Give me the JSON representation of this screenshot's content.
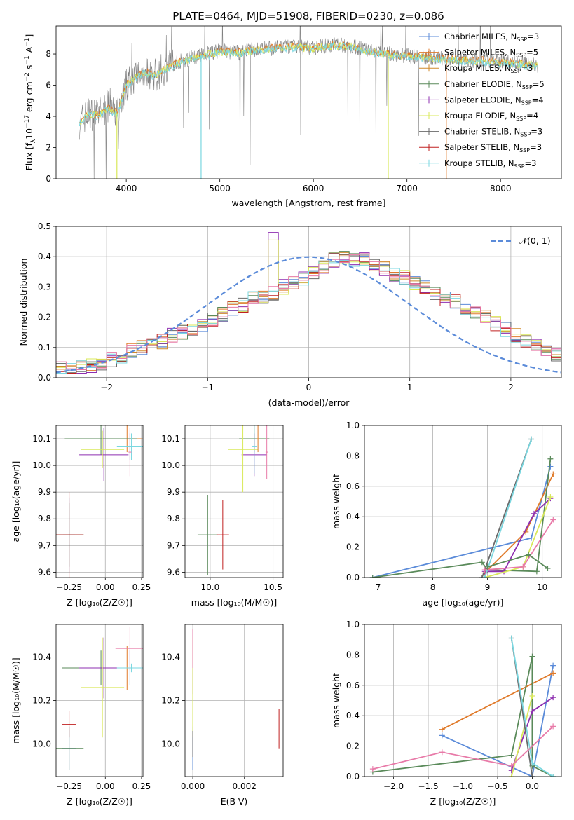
{
  "title": "PLATE=0464, MJD=51908, FIBERID=0230, z=0.086",
  "colors": {
    "chabrier_miles": "#5b8bd9",
    "salpeter_miles": "#e07a2a",
    "kroupa_miles": "#d08a2a",
    "chabrier_elodie": "#5a8a5a",
    "salpeter_elodie": "#8e2fb0",
    "kroupa_elodie": "#d9e85a",
    "chabrier_stelib": "#6a6a6a",
    "salpeter_stelib": "#c02020",
    "kroupa_stelib": "#7ad7e0",
    "pink": "#e87aa8",
    "normal_curve": "#5b8bd9",
    "data_flux": "#808080"
  },
  "chart_data": [
    {
      "type": "line",
      "panel": "spectrum",
      "xlabel": "wavelength [Angstrom, rest frame]",
      "ylabel_main": "Flux [f",
      "ylabel_sub1": "λ",
      "ylabel_mid": "10",
      "ylabel_sup1": "−17",
      "ylabel_tail": " erg cm",
      "ylabel_sup2": "−2",
      "ylabel_tail2": " s",
      "ylabel_sup3": "−1",
      "ylabel_tail3": " A",
      "ylabel_sup4": "−1",
      "ylabel_end": "]",
      "xlim": [
        3250,
        8650
      ],
      "ylim": [
        0,
        9.8
      ],
      "xticks": [
        "4000",
        "5000",
        "6000",
        "7000",
        "8000"
      ],
      "yticks": [
        "0",
        "2",
        "4",
        "6",
        "8"
      ],
      "legend": [
        {
          "pre": "Chabrier MILES, N",
          "sub": "SSP",
          "post": "=3"
        },
        {
          "pre": "Salpeter MILES, N",
          "sub": "SSP",
          "post": "=5"
        },
        {
          "pre": "Kroupa MILES, N",
          "sub": "SSP",
          "post": "=3"
        },
        {
          "pre": "Chabrier ELODIE, N",
          "sub": "SSP",
          "post": "=5"
        },
        {
          "pre": "Salpeter ELODIE, N",
          "sub": "SSP",
          "post": "=4"
        },
        {
          "pre": "Kroupa ELODIE, N",
          "sub": "SSP",
          "post": "=4"
        },
        {
          "pre": "Chabrier STELIB, N",
          "sub": "SSP",
          "post": "=3"
        },
        {
          "pre": "Salpeter STELIB, N",
          "sub": "SSP",
          "post": "=3"
        },
        {
          "pre": "Kroupa STELIB, N",
          "sub": "SSP",
          "post": "=3"
        }
      ],
      "continuum": [
        [
          3500,
          3.6
        ],
        [
          3600,
          4.2
        ],
        [
          3700,
          4.1
        ],
        [
          3800,
          4.6
        ],
        [
          3900,
          4.2
        ],
        [
          4000,
          6.0
        ],
        [
          4100,
          6.6
        ],
        [
          4200,
          6.9
        ],
        [
          4300,
          6.6
        ],
        [
          4400,
          7.0
        ],
        [
          4600,
          7.6
        ],
        [
          4800,
          7.9
        ],
        [
          5000,
          8.2
        ],
        [
          5200,
          8.1
        ],
        [
          5400,
          8.3
        ],
        [
          5600,
          8.4
        ],
        [
          5800,
          8.5
        ],
        [
          6000,
          8.4
        ],
        [
          6200,
          8.6
        ],
        [
          6400,
          8.5
        ],
        [
          6600,
          8.2
        ],
        [
          6800,
          8.0
        ],
        [
          7000,
          7.9
        ],
        [
          7200,
          7.8
        ],
        [
          7400,
          7.7
        ],
        [
          7600,
          7.6
        ],
        [
          7800,
          7.6
        ],
        [
          8000,
          7.5
        ],
        [
          8200,
          7.4
        ],
        [
          8400,
          7.3
        ]
      ]
    },
    {
      "type": "bar",
      "panel": "residual-histogram",
      "xlabel": "(data-model)/error",
      "ylabel": "Normed distribution",
      "xlim": [
        -2.5,
        2.5
      ],
      "ylim": [
        0,
        0.5
      ],
      "xticks": [
        "−2",
        "−1",
        "0",
        "1",
        "2"
      ],
      "yticks": [
        "0.0",
        "0.1",
        "0.2",
        "0.3",
        "0.4",
        "0.5"
      ],
      "legend": "𝒩(0, 1)",
      "bin_width": 0.1,
      "bins_start": -2.5,
      "reference_values": [
        0.03,
        0.03,
        0.04,
        0.04,
        0.05,
        0.06,
        0.07,
        0.09,
        0.1,
        0.11,
        0.12,
        0.14,
        0.15,
        0.16,
        0.17,
        0.19,
        0.21,
        0.23,
        0.24,
        0.26,
        0.27,
        0.28,
        0.3,
        0.31,
        0.33,
        0.35,
        0.37,
        0.39,
        0.4,
        0.39,
        0.39,
        0.37,
        0.36,
        0.34,
        0.33,
        0.31,
        0.3,
        0.28,
        0.26,
        0.25,
        0.23,
        0.21,
        0.2,
        0.18,
        0.16,
        0.14,
        0.12,
        0.11,
        0.09,
        0.08,
        0.07,
        0.06,
        0.05,
        0.04,
        0.04,
        0.03
      ]
    },
    {
      "type": "scatter",
      "panel": "age-vs-Z",
      "xlabel": "Z [log₁₀(Z/Z☉)]",
      "ylabel": "age  [log₁₀(age/yr)]",
      "xlim": [
        -0.34,
        0.26
      ],
      "ylim": [
        9.58,
        10.15
      ],
      "xticks": [
        "−0.25",
        "0.00",
        "0.25"
      ],
      "yticks": [
        "9.6",
        "9.7",
        "9.8",
        "9.9",
        "10.0",
        "10.1"
      ],
      "points": [
        {
          "x": -0.25,
          "y": 9.74,
          "xe": 0.04,
          "ye": 0.14,
          "c": "chabrier_miles"
        },
        {
          "x": 0.17,
          "y": 10.07,
          "xe": 0.08,
          "ye": 0.05,
          "c": "chabrier_miles"
        },
        {
          "x": 0.15,
          "y": 10.1,
          "xe": 0.1,
          "ye": 0.05,
          "c": "salpeter_miles"
        },
        {
          "x": -0.25,
          "y": 9.74,
          "xe": 0.1,
          "ye": 0.12,
          "c": "chabrier_elodie"
        },
        {
          "x": -0.03,
          "y": 10.1,
          "xe": 0.25,
          "ye": 0.06,
          "c": "chabrier_elodie"
        },
        {
          "x": -0.01,
          "y": 10.04,
          "xe": 0.17,
          "ye": 0.1,
          "c": "salpeter_elodie"
        },
        {
          "x": -0.02,
          "y": 10.06,
          "xe": 0.15,
          "ye": 0.07,
          "c": "kroupa_elodie"
        },
        {
          "x": -0.25,
          "y": 9.74,
          "xe": 0.1,
          "ye": 0.16,
          "c": "salpeter_stelib"
        },
        {
          "x": 0.18,
          "y": 10.07,
          "xe": 0.1,
          "ye": 0.05,
          "c": "kroupa_stelib"
        },
        {
          "x": 0.17,
          "y": 10.05,
          "xe": 0.01,
          "ye": 0.09,
          "c": "pink"
        }
      ]
    },
    {
      "type": "scatter",
      "panel": "age-vs-mass",
      "xlabel": "mass [log₁₀(M/M☉)]",
      "ylabel": "",
      "xlim": [
        9.8,
        10.58
      ],
      "ylim": [
        9.58,
        10.15
      ],
      "xticks": [
        "10.0",
        "10.5"
      ],
      "yticks": [
        "9.6",
        "9.7",
        "9.8",
        "9.9",
        "10.0",
        "10.1"
      ],
      "points": [
        {
          "x": 9.98,
          "y": 9.74,
          "xe": 0.08,
          "ye": 0.15,
          "c": "chabrier_elodie"
        },
        {
          "x": 10.35,
          "y": 10.1,
          "xe": 0.12,
          "ye": 0.05,
          "c": "chabrier_elodie"
        },
        {
          "x": 10.35,
          "y": 10.04,
          "xe": 0.1,
          "ye": 0.08,
          "c": "salpeter_elodie"
        },
        {
          "x": 10.26,
          "y": 10.06,
          "xe": 0.12,
          "ye": 0.16,
          "c": "kroupa_elodie"
        },
        {
          "x": 10.1,
          "y": 9.74,
          "xe": 0.05,
          "ye": 0.13,
          "c": "salpeter_stelib"
        },
        {
          "x": 10.35,
          "y": 10.07,
          "xe": 0.02,
          "ye": 0.1,
          "c": "kroupa_stelib"
        },
        {
          "x": 10.45,
          "y": 10.05,
          "xe": 0.01,
          "ye": 0.1,
          "c": "pink"
        },
        {
          "x": 10.38,
          "y": 10.1,
          "xe": 0.01,
          "ye": 0.05,
          "c": "salpeter_miles"
        }
      ]
    },
    {
      "type": "line",
      "panel": "mass-weight-vs-age",
      "xlabel": "age  [log₁₀(age/yr)]",
      "ylabel": "mass weight",
      "xlim": [
        6.75,
        10.35
      ],
      "ylim": [
        0,
        1.0
      ],
      "xticks": [
        "7",
        "8",
        "9",
        "10"
      ],
      "yticks": [
        "0.0",
        "0.2",
        "0.4",
        "0.6",
        "0.8",
        "1.0"
      ],
      "series": [
        {
          "c": "chabrier_miles",
          "pts": [
            [
              6.9,
              0.0
            ],
            [
              9.8,
              0.26
            ],
            [
              10.15,
              0.73
            ]
          ]
        },
        {
          "c": "salpeter_miles",
          "pts": [
            [
              8.95,
              0.03
            ],
            [
              9.7,
              0.3
            ],
            [
              10.2,
              0.68
            ]
          ]
        },
        {
          "c": "chabrier_elodie",
          "pts": [
            [
              6.9,
              0.0
            ],
            [
              8.9,
              0.1
            ],
            [
              9.0,
              0.05
            ],
            [
              9.9,
              0.04
            ],
            [
              10.15,
              0.78
            ]
          ]
        },
        {
          "c": "salpeter_elodie",
          "pts": [
            [
              8.95,
              0.04
            ],
            [
              9.3,
              0.04
            ],
            [
              9.85,
              0.42
            ],
            [
              10.15,
              0.52
            ]
          ]
        },
        {
          "c": "kroupa_elodie",
          "pts": [
            [
              8.95,
              0.0
            ],
            [
              9.65,
              0.07
            ],
            [
              10.15,
              0.53
            ]
          ]
        },
        {
          "c": "chabrier_stelib",
          "pts": [
            [
              8.9,
              0.0
            ],
            [
              9.8,
              0.91
            ]
          ]
        },
        {
          "c": "kroupa_stelib",
          "pts": [
            [
              8.95,
              0.0
            ],
            [
              9.8,
              0.91
            ]
          ]
        },
        {
          "c": "pink",
          "pts": [
            [
              8.95,
              0.05
            ],
            [
              9.65,
              0.07
            ],
            [
              10.2,
              0.38
            ]
          ]
        },
        {
          "c": "chabrier_elodie",
          "pts": [
            [
              9.0,
              0.07
            ],
            [
              9.75,
              0.15
            ],
            [
              10.1,
              0.06
            ]
          ]
        }
      ]
    },
    {
      "type": "scatter",
      "panel": "mass-vs-Z",
      "xlabel": "Z [log₁₀(Z/Z☉)]",
      "ylabel": "mass [log₁₀(M/M☉)]",
      "xlim": [
        -0.34,
        0.26
      ],
      "ylim": [
        9.85,
        10.55
      ],
      "xticks": [
        "−0.25",
        "0.00",
        "0.25"
      ],
      "yticks": [
        "10.0",
        "10.2",
        "10.4"
      ],
      "points": [
        {
          "x": -0.25,
          "y": 9.98,
          "xe": 0.05,
          "ye": 0.1,
          "c": "chabrier_miles"
        },
        {
          "x": 0.17,
          "y": 10.35,
          "xe": 0.09,
          "ye": 0.08,
          "c": "chabrier_miles"
        },
        {
          "x": 0.15,
          "y": 10.35,
          "xe": 0.1,
          "ye": 0.1,
          "c": "salpeter_miles"
        },
        {
          "x": -0.25,
          "y": 9.98,
          "xe": 0.1,
          "ye": 0.1,
          "c": "chabrier_elodie"
        },
        {
          "x": -0.03,
          "y": 10.35,
          "xe": 0.27,
          "ye": 0.08,
          "c": "chabrier_elodie"
        },
        {
          "x": -0.01,
          "y": 10.35,
          "xe": 0.17,
          "ye": 0.14,
          "c": "salpeter_elodie"
        },
        {
          "x": -0.02,
          "y": 10.26,
          "xe": 0.15,
          "ye": 0.23,
          "c": "kroupa_elodie"
        },
        {
          "x": -0.25,
          "y": 10.09,
          "xe": 0.05,
          "ye": 0.06,
          "c": "salpeter_stelib"
        },
        {
          "x": 0.17,
          "y": 10.44,
          "xe": 0.1,
          "ye": 0.1,
          "c": "pink"
        },
        {
          "x": 0.18,
          "y": 10.35,
          "xe": 0.1,
          "ye": 0.02,
          "c": "kroupa_stelib"
        }
      ]
    },
    {
      "type": "scatter",
      "panel": "mass-vs-ebv",
      "xlabel": "E(B-V)",
      "ylabel": "",
      "xlim": [
        -0.0003,
        0.0035
      ],
      "ylim": [
        9.85,
        10.55
      ],
      "xticks": [
        "0.000",
        "0.002"
      ],
      "yticks": [
        "10.0",
        "10.2",
        "10.4"
      ],
      "points": [
        {
          "x": 0.0,
          "y": 9.98,
          "xe": 0.0,
          "ye": 0.1,
          "c": "chabrier_miles"
        },
        {
          "x": 0.0,
          "y": 10.35,
          "xe": 0.0,
          "ye": 0.08,
          "c": "chabrier_elodie"
        },
        {
          "x": 0.0,
          "y": 10.35,
          "xe": 0.0,
          "ye": 0.12,
          "c": "salpeter_elodie"
        },
        {
          "x": 0.0,
          "y": 10.26,
          "xe": 0.0,
          "ye": 0.23,
          "c": "kroupa_elodie"
        },
        {
          "x": 0.0,
          "y": 10.44,
          "xe": 0.0,
          "ye": 0.09,
          "c": "pink"
        },
        {
          "x": 0.0,
          "y": 10.0,
          "xe": 0.0,
          "ye": 0.06,
          "c": "chabrier_stelib"
        },
        {
          "x": 0.00334,
          "y": 10.07,
          "xe": 0.0,
          "ye": 0.09,
          "c": "salpeter_stelib"
        }
      ]
    },
    {
      "type": "line",
      "panel": "mass-weight-vs-Z",
      "xlabel": "Z [log₁₀(Z/Z☉)]",
      "ylabel": "mass weight",
      "xlim": [
        -2.42,
        0.42
      ],
      "ylim": [
        0,
        1.0
      ],
      "xticks": [
        "−2.0",
        "−1.5",
        "−1.0",
        "−0.5",
        "0.0"
      ],
      "yticks": [
        "0.0",
        "0.2",
        "0.4",
        "0.6",
        "0.8",
        "1.0"
      ],
      "series": [
        {
          "c": "chabrier_miles",
          "pts": [
            [
              -1.3,
              0.27
            ],
            [
              0.0,
              0.0
            ],
            [
              0.3,
              0.73
            ]
          ]
        },
        {
          "c": "salpeter_miles",
          "pts": [
            [
              -1.3,
              0.31
            ],
            [
              0.3,
              0.68
            ]
          ]
        },
        {
          "c": "chabrier_elodie",
          "pts": [
            [
              -2.3,
              0.03
            ],
            [
              -0.3,
              0.14
            ],
            [
              0.0,
              0.79
            ],
            [
              0.0,
              0.07
            ],
            [
              0.3,
              0.0
            ]
          ]
        },
        {
          "c": "salpeter_elodie",
          "pts": [
            [
              -0.3,
              0.04
            ],
            [
              0.0,
              0.43
            ],
            [
              0.3,
              0.52
            ]
          ]
        },
        {
          "c": "kroupa_elodie",
          "pts": [
            [
              -0.3,
              0.0
            ],
            [
              0.0,
              0.53
            ]
          ]
        },
        {
          "c": "chabrier_stelib",
          "pts": [
            [
              -0.3,
              0.91
            ],
            [
              0.0,
              0.0
            ]
          ]
        },
        {
          "c": "kroupa_stelib",
          "pts": [
            [
              -0.3,
              0.91
            ],
            [
              0.0,
              0.09
            ],
            [
              0.3,
              0.0
            ]
          ]
        },
        {
          "c": "pink",
          "pts": [
            [
              -2.3,
              0.05
            ],
            [
              -1.3,
              0.16
            ],
            [
              -0.3,
              0.07
            ],
            [
              0.3,
              0.33
            ]
          ]
        }
      ]
    }
  ]
}
